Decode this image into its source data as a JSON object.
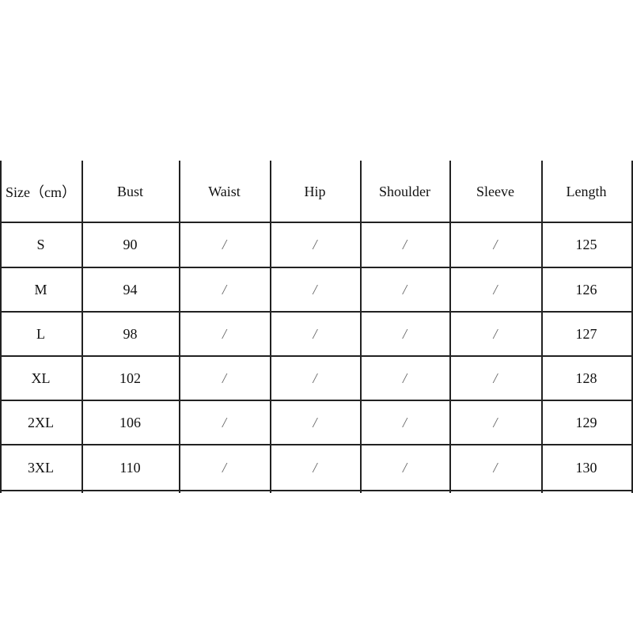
{
  "table": {
    "headers": [
      "Size（cm）",
      "Bust",
      "Waist",
      "Hip",
      "Shoulder",
      "Sleeve",
      "Length"
    ],
    "rows": [
      [
        "S",
        "90",
        "/",
        "/",
        "/",
        "/",
        "125"
      ],
      [
        "M",
        "94",
        "/",
        "/",
        "/",
        "/",
        "126"
      ],
      [
        "L",
        "98",
        "/",
        "/",
        "/",
        "/",
        "127"
      ],
      [
        "XL",
        "102",
        "/",
        "/",
        "/",
        "/",
        "128"
      ],
      [
        "2XL",
        "106",
        "/",
        "/",
        "/",
        "/",
        "129"
      ],
      [
        "3XL",
        "110",
        "/",
        "/",
        "/",
        "/",
        "130"
      ]
    ]
  }
}
